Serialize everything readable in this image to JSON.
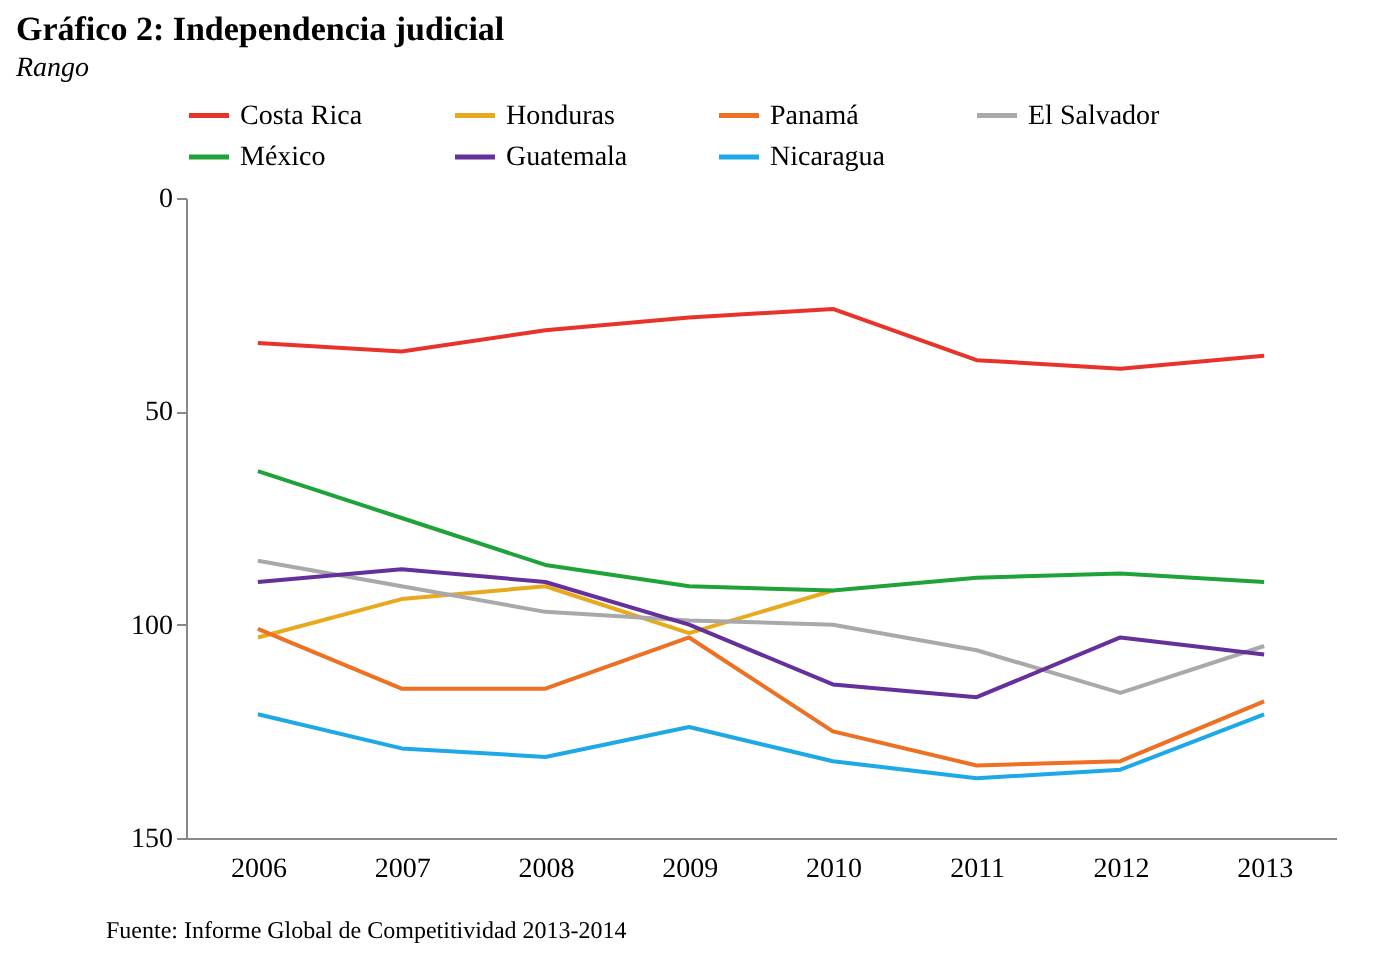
{
  "chart_data": {
    "type": "line",
    "title": "Gráfico 2: Independencia judicial",
    "subtitle": "Rango",
    "categories": [
      "2006",
      "2007",
      "2008",
      "2009",
      "2010",
      "2011",
      "2012",
      "2013"
    ],
    "series": [
      {
        "name": "Costa Rica",
        "color": "#e8332a",
        "values": [
          34,
          36,
          31,
          28,
          26,
          38,
          40,
          37
        ]
      },
      {
        "name": "Honduras",
        "color": "#e8a91e",
        "values": [
          103,
          94,
          91,
          102,
          92,
          null,
          null,
          null
        ]
      },
      {
        "name": "Panamá",
        "color": "#ee7023",
        "values": [
          101,
          115,
          115,
          103,
          125,
          133,
          132,
          118
        ]
      },
      {
        "name": "El Salvador",
        "color": "#a9a9ab",
        "values": [
          85,
          91,
          97,
          99,
          100,
          106,
          116,
          105
        ]
      },
      {
        "name": "México",
        "color": "#1fa339",
        "values": [
          64,
          75,
          86,
          91,
          92,
          89,
          88,
          90
        ]
      },
      {
        "name": "Guatemala",
        "color": "#65309a",
        "values": [
          90,
          87,
          90,
          100,
          114,
          117,
          103,
          107
        ]
      },
      {
        "name": "Nicaragua",
        "color": "#1ea9e6",
        "values": [
          121,
          129,
          131,
          124,
          132,
          136,
          134,
          121
        ]
      }
    ],
    "ylim": [
      150,
      0
    ],
    "yticks": [
      0,
      50,
      100,
      150
    ],
    "grid": false,
    "legend": "top",
    "marker": "none",
    "line_style": "solid",
    "annotations": [
      "Fuente: Informe Global de Competitividad 2013-2014"
    ]
  }
}
